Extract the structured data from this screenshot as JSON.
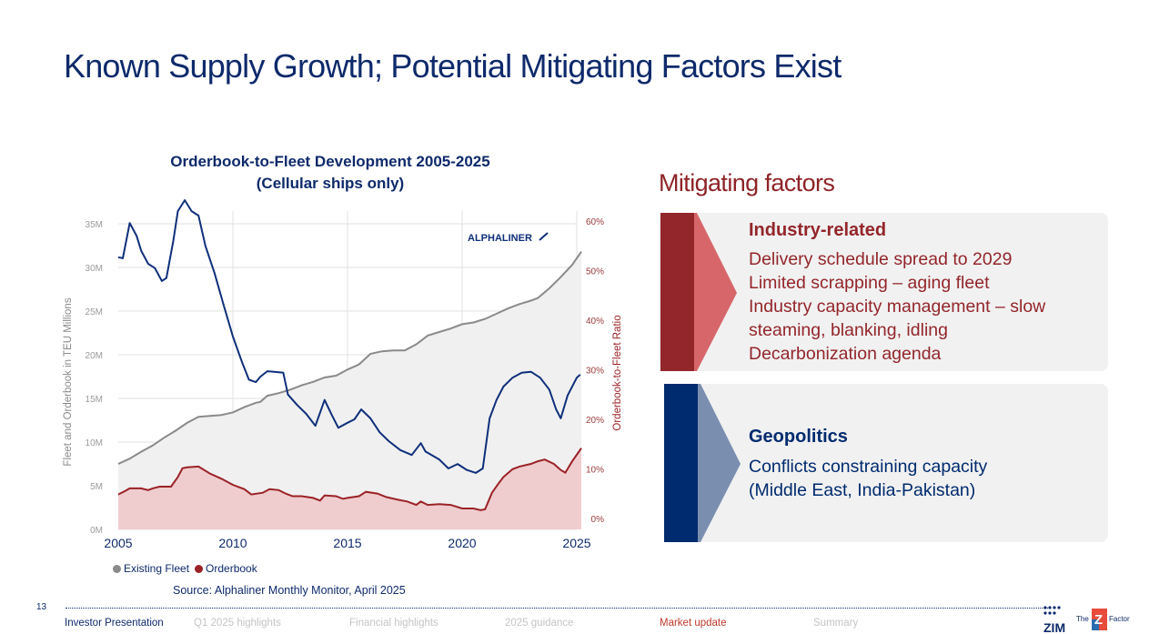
{
  "title": "Known Supply Growth; Potential Mitigating Factors Exist",
  "chart_data": {
    "type": "line",
    "title": "Orderbook-to-Fleet Development 2005-2025",
    "subtitle": "(Cellular ships only)",
    "ylabel": "Fleet and Orderbook in TEU Millions",
    "y2label": "Orderbook-to-Fleet Ratio",
    "xlim": [
      2005,
      2025
    ],
    "ylim": [
      0,
      35
    ],
    "y2lim": [
      0,
      60
    ],
    "x_ticks": [
      "2005",
      "2010",
      "2015",
      "2020",
      "2025"
    ],
    "y_ticks": [
      "0M",
      "5M",
      "10M",
      "15M",
      "20M",
      "25M",
      "30M",
      "35M"
    ],
    "y2_ticks": [
      "0%",
      "10%",
      "20%",
      "30%",
      "40%",
      "50%",
      "60%"
    ],
    "grid": true,
    "legend_position": "bottom-left",
    "watermark": "ALPHALINER",
    "series": [
      {
        "name": "Existing Fleet",
        "axis": "left",
        "style": "area",
        "color": "#8a8a8a",
        "fill": "#f0f0f0",
        "x": [
          2005,
          2005.5,
          2006,
          2006.5,
          2007,
          2007.5,
          2008,
          2008.5,
          2009,
          2009.5,
          2010,
          2010.5,
          2011,
          2011.2,
          2011.5,
          2012,
          2012.5,
          2013,
          2013.5,
          2014,
          2014.5,
          2015,
          2015.5,
          2016,
          2016.5,
          2017,
          2017.5,
          2018,
          2018.5,
          2019,
          2019.5,
          2020,
          2020.5,
          2021,
          2021.5,
          2022,
          2022.5,
          2023,
          2023.3,
          2023.8,
          2024.3,
          2024.8,
          2025.2
        ],
        "values": [
          7.5,
          8.1,
          8.9,
          9.6,
          10.5,
          11.3,
          12.2,
          12.9,
          13.0,
          13.1,
          13.4,
          14.0,
          14.5,
          14.6,
          15.3,
          15.6,
          16.0,
          16.5,
          16.9,
          17.4,
          17.6,
          18.3,
          18.9,
          20.1,
          20.4,
          20.5,
          20.5,
          21.2,
          22.2,
          22.6,
          23.0,
          23.5,
          23.7,
          24.1,
          24.7,
          25.3,
          25.8,
          26.2,
          26.5,
          27.6,
          28.9,
          30.3,
          31.8
        ]
      },
      {
        "name": "Orderbook",
        "axis": "left",
        "style": "area",
        "color": "#9b2226",
        "fill": "#efcdcf",
        "x": [
          2005,
          2005.3,
          2005.5,
          2006,
          2006.3,
          2006.5,
          2006.8,
          2007.3,
          2007.6,
          2007.8,
          2008,
          2008.5,
          2009,
          2009.5,
          2010,
          2010.5,
          2010.8,
          2011.3,
          2011.6,
          2012,
          2012.3,
          2012.6,
          2013,
          2013.5,
          2013.8,
          2014,
          2014.5,
          2014.8,
          2015,
          2015.5,
          2015.8,
          2016.3,
          2016.7,
          2017.2,
          2017.6,
          2018,
          2018.2,
          2018.5,
          2019,
          2019.5,
          2020,
          2020.5,
          2020.8,
          2021,
          2021.3,
          2021.6,
          2021.8,
          2022.2,
          2022.5,
          2023,
          2023.3,
          2023.6,
          2024,
          2024.3,
          2024.5,
          2024.8,
          2025.2
        ],
        "values": [
          4.0,
          4.4,
          4.7,
          4.7,
          4.5,
          4.7,
          4.9,
          4.9,
          6.0,
          7.0,
          7.1,
          7.2,
          6.4,
          5.8,
          5.1,
          4.6,
          4.0,
          4.2,
          4.6,
          4.5,
          4.1,
          3.8,
          3.8,
          3.6,
          3.3,
          3.9,
          3.8,
          3.5,
          3.6,
          3.8,
          4.3,
          4.1,
          3.7,
          3.4,
          3.2,
          2.8,
          3.2,
          2.8,
          2.9,
          2.8,
          2.4,
          2.4,
          2.2,
          2.3,
          4.2,
          5.3,
          6.0,
          6.9,
          7.2,
          7.5,
          7.8,
          8.0,
          7.5,
          6.8,
          6.5,
          7.8,
          9.3
        ]
      },
      {
        "name": "Orderbook-to-Fleet Ratio",
        "axis": "right",
        "style": "line",
        "color": "#0e2f7a",
        "x": [
          2005,
          2005.2,
          2005.5,
          2005.8,
          2006,
          2006.3,
          2006.6,
          2006.9,
          2007.1,
          2007.4,
          2007.6,
          2007.9,
          2008.2,
          2008.5,
          2008.8,
          2009.2,
          2009.6,
          2010,
          2010.4,
          2010.7,
          2011,
          2011.2,
          2011.5,
          2011.8,
          2012.2,
          2012.4,
          2012.8,
          2013.2,
          2013.6,
          2014,
          2014.3,
          2014.6,
          2015,
          2015.3,
          2015.6,
          2016,
          2016.4,
          2016.8,
          2017.3,
          2017.8,
          2018.2,
          2018.4,
          2019,
          2019.4,
          2019.8,
          2020.2,
          2020.6,
          2020.9,
          2021.2,
          2021.5,
          2021.8,
          2022.2,
          2022.6,
          2023,
          2023.4,
          2023.8,
          2024.1,
          2024.3,
          2024.6,
          2025,
          2025.15
        ],
        "values": [
          52.7,
          52.5,
          59.6,
          57.0,
          54.0,
          51.4,
          50.5,
          47.9,
          48.5,
          56.0,
          62.0,
          64.2,
          62.0,
          61.1,
          55.0,
          49.5,
          43.0,
          36.7,
          31.5,
          28.0,
          27.5,
          28.6,
          29.7,
          29.6,
          29.4,
          25.0,
          22.9,
          21.1,
          18.7,
          23.9,
          21.0,
          18.3,
          19.3,
          20.0,
          22.0,
          20.2,
          17.4,
          15.6,
          13.8,
          12.8,
          15.2,
          13.5,
          11.9,
          10.1,
          11.0,
          9.8,
          9.2,
          10.1,
          20.2,
          23.9,
          26.6,
          28.4,
          29.4,
          29.6,
          28.4,
          26.0,
          22.0,
          20.2,
          24.8,
          28.4,
          29.0
        ]
      }
    ]
  },
  "mitigating": {
    "title": "Mitigating factors",
    "industry": {
      "heading": "Industry-related",
      "lines": [
        "Delivery schedule spread to 2029",
        "Limited scrapping – aging fleet",
        "Industry capacity management – slow",
        "steaming, blanking, idling",
        "Decarbonization agenda"
      ]
    },
    "geopolitics": {
      "heading": "Geopolitics",
      "lines": [
        "Conflicts constraining capacity",
        "(Middle East, India-Pakistan)"
      ]
    },
    "colors": {
      "red_dark": "#93262b",
      "red_light": "#d6666a",
      "blue_dark": "#002b6e",
      "blue_light": "#7a8fb0"
    }
  },
  "source": "Source: Alphaliner Monthly Monitor, April 2025",
  "footer": {
    "page_number": "13",
    "nav": [
      "Investor Presentation",
      "Q1 2025 highlights",
      "Financial highlights",
      "2025 guidance",
      "Market update",
      "Summary"
    ],
    "active": "Market update",
    "logo": "ZIM The Z Factor"
  }
}
